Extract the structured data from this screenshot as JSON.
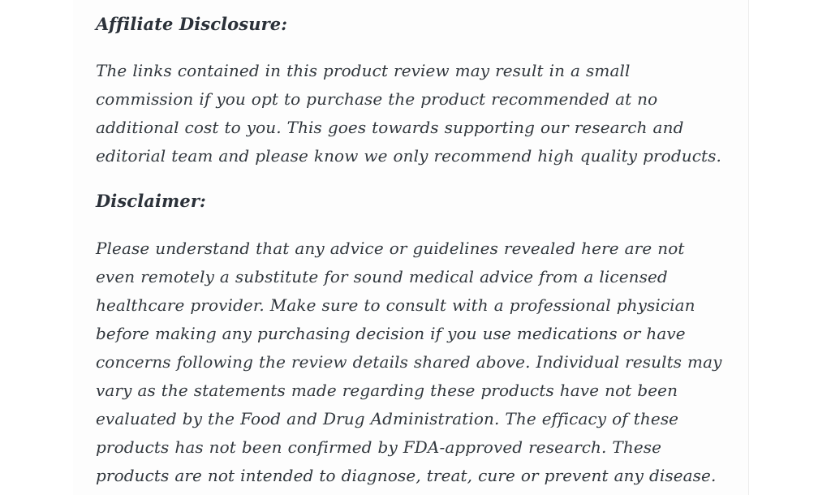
{
  "colors": {
    "text": "#31373d",
    "heading": "#2b3139",
    "page_bg": "#ffffff",
    "content_bg": "#fdfdfd",
    "divider": "#ececec"
  },
  "article": {
    "affiliate": {
      "heading": "Affiliate Disclosure:",
      "paragraph": "The links contained in this product review may result in a small commission if you opt to purchase the product recommended at no additional cost to you. This goes towards supporting our research and editorial team and please know we only recommend high quality products."
    },
    "disclaimer": {
      "heading": "Disclaimer:",
      "paragraph": "Please understand that any advice or guidelines revealed here are not even remotely a substitute for sound medical advice from a licensed healthcare provider. Make sure to consult with a professional physician before making any purchasing decision if you use medications or have concerns following the review details shared above. Individual results may vary as the statements made regarding these products have not been evaluated by the Food and Drug Administration. The efficacy of these products has not been confirmed by FDA-approved research. These products are not intended to diagnose, treat, cure or prevent any disease."
    }
  }
}
